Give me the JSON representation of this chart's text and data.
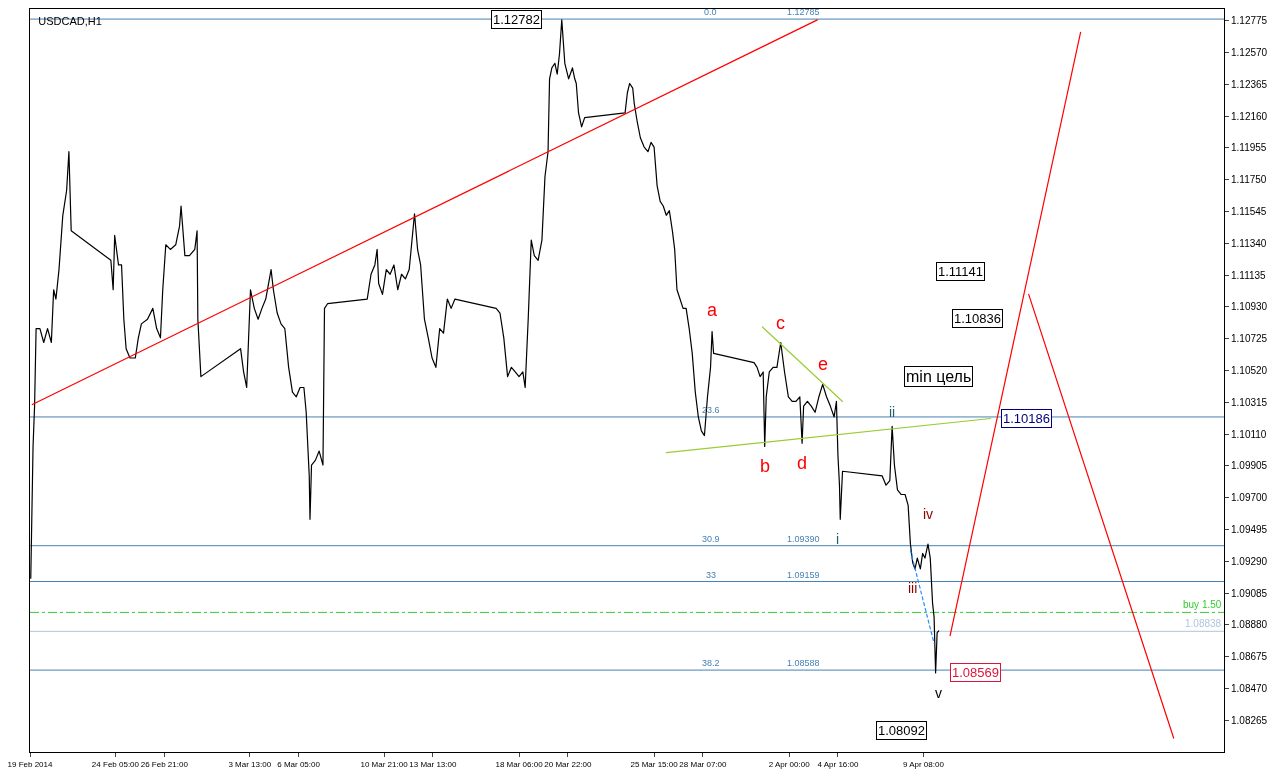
{
  "chart_data": {
    "type": "line",
    "title": "USDCAD,H1",
    "xlim": [
      "2014-02-19T13:00",
      "2014-04-25T18:00"
    ],
    "xticks": [
      {
        "value": "2014-02-19T13:00",
        "label": "19 Feb 2014"
      },
      {
        "value": "2014-02-24T05:00",
        "label": "24 Feb 05:00"
      },
      {
        "value": "2014-02-26T21:00",
        "label": "26 Feb 21:00"
      },
      {
        "value": "2014-03-03T13:00",
        "label": "3 Mar 13:00"
      },
      {
        "value": "2014-03-06T05:00",
        "label": "6 Mar 05:00"
      },
      {
        "value": "2014-03-10T21:00",
        "label": "10 Mar 21:00"
      },
      {
        "value": "2014-03-13T13:00",
        "label": "13 Mar 13:00"
      },
      {
        "value": "2014-03-18T06:00",
        "label": "18 Mar 06:00"
      },
      {
        "value": "2014-03-20T22:00",
        "label": "20 Mar 22:00"
      },
      {
        "value": "2014-03-25T15:00",
        "label": "25 Mar 15:00"
      },
      {
        "value": "2014-03-28T07:00",
        "label": "28 Mar 07:00"
      },
      {
        "value": "2014-04-02T00:00",
        "label": "2 Apr 00:00"
      },
      {
        "value": "2014-04-04T16:00",
        "label": "4 Apr 16:00"
      },
      {
        "value": "2014-04-09T08:00",
        "label": "9 Apr 08:00"
      }
    ],
    "ylim": [
      1.0806,
      1.1285
    ],
    "yticks": [
      {
        "value": 1.12775,
        "label": "1.12775"
      },
      {
        "value": 1.1257,
        "label": "1.12570"
      },
      {
        "value": 1.12365,
        "label": "1.12365"
      },
      {
        "value": 1.1216,
        "label": "1.12160"
      },
      {
        "value": 1.11955,
        "label": "1.11955"
      },
      {
        "value": 1.1175,
        "label": "1.11750"
      },
      {
        "value": 1.11545,
        "label": "1.11545"
      },
      {
        "value": 1.1134,
        "label": "1.11340"
      },
      {
        "value": 1.11135,
        "label": "1.11135"
      },
      {
        "value": 1.1093,
        "label": "1.10930"
      },
      {
        "value": 1.10725,
        "label": "1.10725"
      },
      {
        "value": 1.1052,
        "label": "1.10520"
      },
      {
        "value": 1.10315,
        "label": "1.10315"
      },
      {
        "value": 1.1011,
        "label": "1.10110"
      },
      {
        "value": 1.09905,
        "label": "1.09905"
      },
      {
        "value": 1.097,
        "label": "1.09700"
      },
      {
        "value": 1.09495,
        "label": "1.09495"
      },
      {
        "value": 1.0929,
        "label": "1.09290"
      },
      {
        "value": 1.09085,
        "label": "1.09085"
      },
      {
        "value": 1.0888,
        "label": "1.08880"
      },
      {
        "value": 1.08675,
        "label": "1.08675"
      },
      {
        "value": 1.0847,
        "label": "1.08470"
      },
      {
        "value": 1.08265,
        "label": "1.08265"
      }
    ],
    "grid": false,
    "marker": "none",
    "series": [
      {
        "color": "#000000",
        "x": [
          "2014-02-19T14:00",
          "2014-02-19T17:00",
          "2014-02-19T19:00",
          "2014-02-19T21:00",
          "2014-02-20T02:00",
          "2014-02-20T07:00",
          "2014-02-20T12:00",
          "2014-02-20T17:00",
          "2014-02-20T20:00",
          "2014-02-20T23:00",
          "2014-02-21T03:00",
          "2014-02-21T08:00",
          "2014-02-21T13:00",
          "2014-02-21T16:00",
          "2014-02-21T19:00",
          "2014-02-23T23:00",
          "2014-02-24T02:00",
          "2014-02-24T04:00",
          "2014-02-24T09:00",
          "2014-02-24T13:00",
          "2014-02-24T16:00",
          "2014-02-24T19:00",
          "2014-02-25T00:00",
          "2014-02-25T07:00",
          "2014-02-25T11:00",
          "2014-02-25T15:00",
          "2014-02-25T23:00",
          "2014-02-26T06:00",
          "2014-02-26T11:00",
          "2014-02-26T16:00",
          "2014-02-26T19:00",
          "2014-02-26T23:00",
          "2014-02-27T05:00",
          "2014-02-27T12:00",
          "2014-02-27T17:00",
          "2014-02-27T19:00",
          "2014-02-28T00:00",
          "2014-02-28T06:00",
          "2014-02-28T13:00",
          "2014-02-28T16:00",
          "2014-02-28T17:00",
          "2014-02-28T21:00",
          "2014-03-03T01:00",
          "2014-03-03T05:00",
          "2014-03-03T09:00",
          "2014-03-03T14:00",
          "2014-03-03T19:00",
          "2014-03-04T00:00",
          "2014-03-04T05:00",
          "2014-03-04T10:00",
          "2014-03-04T17:00",
          "2014-03-04T20:00",
          "2014-03-05T01:00",
          "2014-03-05T06:00",
          "2014-03-05T11:00",
          "2014-03-05T16:00",
          "2014-03-05T21:00",
          "2014-03-06T02:00",
          "2014-03-06T07:00",
          "2014-03-06T12:00",
          "2014-03-06T15:00",
          "2014-03-06T19:00",
          "2014-03-06T20:00",
          "2014-03-06T22:00",
          "2014-03-07T03:00",
          "2014-03-07T08:00",
          "2014-03-07T13:00",
          "2014-03-07T15:00",
          "2014-03-07T19:00",
          "2014-03-09T23:00",
          "2014-03-10T04:00",
          "2014-03-10T09:00",
          "2014-03-10T12:00",
          "2014-03-10T14:00",
          "2014-03-10T19:00",
          "2014-03-11T00:00",
          "2014-03-11T05:00",
          "2014-03-11T10:00",
          "2014-03-11T15:00",
          "2014-03-11T20:00",
          "2014-03-12T01:00",
          "2014-03-12T06:00",
          "2014-03-12T13:00",
          "2014-03-12T17:00",
          "2014-03-12T21:00",
          "2014-03-13T02:00",
          "2014-03-13T07:00",
          "2014-03-13T12:00",
          "2014-03-13T17:00",
          "2014-03-13T22:00",
          "2014-03-14T03:00",
          "2014-03-14T08:00",
          "2014-03-14T13:00",
          "2014-03-14T18:00",
          "2014-03-17T00:00",
          "2014-03-17T05:00",
          "2014-03-17T10:00",
          "2014-03-17T15:00",
          "2014-03-17T20:00",
          "2014-03-18T01:00",
          "2014-03-18T06:00",
          "2014-03-18T11:00",
          "2014-03-18T14:00",
          "2014-03-18T18:00",
          "2014-03-18T22:00",
          "2014-03-19T02:00",
          "2014-03-19T07:00",
          "2014-03-19T12:00",
          "2014-03-19T16:00",
          "2014-03-19T20:00",
          "2014-03-19T22:00",
          "2014-03-20T01:00",
          "2014-03-20T05:00",
          "2014-03-20T08:00",
          "2014-03-20T11:00",
          "2014-03-20T14:00",
          "2014-03-20T18:00",
          "2014-03-20T23:00",
          "2014-03-21T04:00",
          "2014-03-21T07:00",
          "2014-03-21T09:00",
          "2014-03-21T12:00",
          "2014-03-21T16:00",
          "2014-03-21T20:00",
          "2014-03-24T01:00",
          "2014-03-24T04:00",
          "2014-03-24T07:00",
          "2014-03-24T11:00",
          "2014-03-24T13:00",
          "2014-03-24T17:00",
          "2014-03-24T21:00",
          "2014-03-25T02:00",
          "2014-03-25T07:00",
          "2014-03-25T11:00",
          "2014-03-25T15:00",
          "2014-03-25T19:00",
          "2014-03-25T23:00",
          "2014-03-26T03:00",
          "2014-03-26T07:00",
          "2014-03-26T11:00",
          "2014-03-26T15:00",
          "2014-03-26T18:00",
          "2014-03-26T21:00",
          "2014-03-27T01:00",
          "2014-03-27T05:00",
          "2014-03-27T09:00",
          "2014-03-27T13:00",
          "2014-03-27T17:00",
          "2014-03-27T21:00",
          "2014-03-28T01:00",
          "2014-03-28T05:00",
          "2014-03-28T09:00",
          "2014-03-28T13:00",
          "2014-03-28T17:00",
          "2014-03-28T19:00",
          "2014-03-28T21:00",
          "2014-03-31T02:00",
          "2014-03-31T06:00",
          "2014-03-31T10:00",
          "2014-03-31T14:00",
          "2014-03-31T16:00",
          "2014-03-31T18:00",
          "2014-03-31T22:00",
          "2014-04-01T03:00",
          "2014-04-01T08:00",
          "2014-04-01T13:00",
          "2014-04-01T18:00",
          "2014-04-01T23:00",
          "2014-04-02T04:00",
          "2014-04-02T09:00",
          "2014-04-02T14:00",
          "2014-04-02T17:00",
          "2014-04-02T19:00",
          "2014-04-03T00:00",
          "2014-04-03T05:00",
          "2014-04-03T10:00",
          "2014-04-03T15:00",
          "2014-04-03T20:00",
          "2014-04-04T01:00",
          "2014-04-04T06:00",
          "2014-04-04T11:00",
          "2014-04-04T14:00",
          "2014-04-04T16:00",
          "2014-04-04T18:00",
          "2014-04-04T19:00",
          "2014-04-04T22:00",
          "2014-04-07T02:00",
          "2014-04-07T07:00",
          "2014-04-07T12:00",
          "2014-04-07T15:00",
          "2014-04-07T18:00",
          "2014-04-07T22:00",
          "2014-04-08T03:00",
          "2014-04-08T08:00",
          "2014-04-08T12:00",
          "2014-04-08T15:00",
          "2014-04-08T18:00",
          "2014-04-08T21:00",
          "2014-04-09T00:00",
          "2014-04-09T04:00",
          "2014-04-09T07:00",
          "2014-04-09T10:00",
          "2014-04-09T14:00",
          "2014-04-09T17:00",
          "2014-04-09T20:00",
          "2014-04-09T22:00",
          "2014-04-10T00:00",
          "2014-04-10T02:00",
          "2014-04-10T04:00"
        ],
        "values": [
          1.0918,
          1.1003,
          1.1029,
          1.1079,
          1.1079,
          1.107,
          1.1079,
          1.107,
          1.1104,
          1.1098,
          1.1117,
          1.1152,
          1.1168,
          1.1193,
          1.1142,
          1.1123,
          1.1104,
          1.1139,
          1.112,
          1.112,
          1.1085,
          1.1066,
          1.106,
          1.106,
          1.1073,
          1.1082,
          1.1085,
          1.1092,
          1.1079,
          1.1073,
          1.1104,
          1.1133,
          1.113,
          1.1133,
          1.1145,
          1.1158,
          1.1126,
          1.1126,
          1.113,
          1.1142,
          1.1085,
          1.1048,
          1.1066,
          1.1051,
          1.1041,
          1.1104,
          1.1092,
          1.1085,
          1.1092,
          1.1098,
          1.1117,
          1.1104,
          1.1089,
          1.1082,
          1.1079,
          1.1054,
          1.1038,
          1.1035,
          1.1041,
          1.1041,
          1.1025,
          1.0984,
          1.0956,
          1.0991,
          1.0994,
          1.1,
          1.0991,
          1.1092,
          1.1095,
          1.1098,
          1.1114,
          1.112,
          1.113,
          1.1108,
          1.1101,
          1.1117,
          1.1114,
          1.112,
          1.1104,
          1.1114,
          1.1111,
          1.1117,
          1.1153,
          1.113,
          1.112,
          1.1085,
          1.1073,
          1.106,
          1.1054,
          1.1079,
          1.1076,
          1.1098,
          1.1092,
          1.1098,
          1.1092,
          1.1089,
          1.1073,
          1.1048,
          1.1054,
          1.1051,
          1.1048,
          1.1051,
          1.1041,
          1.1085,
          1.1136,
          1.1126,
          1.1123,
          1.1136,
          1.1177,
          1.1193,
          1.124,
          1.1247,
          1.125,
          1.1243,
          1.1256,
          1.1278,
          1.125,
          1.124,
          1.1247,
          1.124,
          1.1237,
          1.1218,
          1.1209,
          1.1215,
          1.1218,
          1.1231,
          1.1237,
          1.1234,
          1.1224,
          1.1212,
          1.1202,
          1.1196,
          1.1193,
          1.1199,
          1.1196,
          1.1171,
          1.1161,
          1.1158,
          1.1152,
          1.1155,
          1.1142,
          1.113,
          1.1104,
          1.1098,
          1.1092,
          1.1092,
          1.1079,
          1.1063,
          1.1038,
          1.1022,
          1.1013,
          1.101,
          1.1035,
          1.1054,
          1.1077,
          1.1063,
          1.1057,
          1.1054,
          1.1048,
          1.1051,
          1.1003,
          1.1035,
          1.1051,
          1.1054,
          1.1054,
          1.107,
          1.1051,
          1.1035,
          1.1032,
          1.1032,
          1.1035,
          1.1005,
          1.1029,
          1.1032,
          1.1029,
          1.1025,
          1.1035,
          1.1043,
          1.1035,
          1.1029,
          1.1022,
          1.1032,
          1.0997,
          1.0978,
          1.0956,
          1.0987,
          1.0984,
          1.0978,
          1.0981,
          1.1016,
          1.0991,
          1.0975,
          1.0972,
          1.0972,
          1.0965,
          1.094,
          1.0928,
          1.0924,
          1.0931,
          1.0924,
          1.0934,
          1.0931,
          1.094,
          1.0931,
          1.0902,
          1.0893,
          1.0857,
          1.0883,
          1.0884
        ]
      },
      {
        "color": "#ff0000",
        "x": [
          "2014-02-19T16:00",
          "2014-04-03T13:00"
        ],
        "values": [
          1.103,
          1.1278
        ]
      },
      {
        "color": "#9acd32",
        "x": [
          "2014-03-26T07:00",
          "2014-04-13T00:00"
        ],
        "values": [
          1.0999,
          1.1021
        ]
      },
      {
        "color": "#9acd32",
        "x": [
          "2014-03-31T13:00",
          "2014-04-04T22:00"
        ],
        "values": [
          1.108,
          1.1032
        ]
      },
      {
        "color": "#1e90ff",
        "line_style": "dotted",
        "x": [
          "2014-04-08T15:00",
          "2014-04-09T22:00"
        ],
        "values": [
          1.0936,
          1.0876
        ]
      },
      {
        "color": "#ff0000",
        "x": [
          "2014-04-10T19:00",
          "2014-04-17T22:00"
        ],
        "values": [
          1.0881,
          1.127
        ]
      },
      {
        "color": "#ff0000",
        "x": [
          "2014-04-15T02:00",
          "2014-04-23T00:00"
        ],
        "values": [
          1.1101,
          1.0815
        ]
      }
    ],
    "ref_lines": [
      {
        "axis": "y",
        "value": 1.12785,
        "color": "#4682b4"
      },
      {
        "axis": "y",
        "value": 1.1022,
        "color": "#4682b4"
      },
      {
        "axis": "y",
        "value": 1.0939,
        "color": "#4682b4"
      },
      {
        "axis": "y",
        "value": 1.09159,
        "color": "#4682b4"
      },
      {
        "axis": "y",
        "value": 1.08588,
        "color": "#4682b4"
      },
      {
        "axis": "y",
        "value": 1.0896,
        "label": "buy 1.50",
        "color": "#32cd32",
        "line_style": "dashdot"
      },
      {
        "axis": "y",
        "value": 1.08838,
        "label": "1.08838",
        "color": "#b0c4de"
      }
    ],
    "annotations": [
      {
        "text": "0.0",
        "x": "2014-03-28T17:00",
        "y": 1.12785
      },
      {
        "text": "1.12785",
        "x": "2014-04-02T19:00",
        "y": 1.12785
      },
      {
        "text": "23.6",
        "x": "2014-03-28T17:00",
        "y": 1.1022
      },
      {
        "text": "30.9",
        "x": "2014-03-28T17:00",
        "y": 1.0939
      },
      {
        "text": "1.09390",
        "x": "2014-04-02T19:00",
        "y": 1.0939
      },
      {
        "text": "33",
        "x": "2014-03-28T17:00",
        "y": 1.09159
      },
      {
        "text": "1.09159",
        "x": "2014-04-02T19:00",
        "y": 1.09159
      },
      {
        "text": "38.2",
        "x": "2014-03-28T17:00",
        "y": 1.08588
      },
      {
        "text": "1.08588",
        "x": "2014-04-02T19:00",
        "y": 1.08588
      },
      {
        "text": "1.12782",
        "x": "2014-03-20T14:00",
        "y": 1.1278
      },
      {
        "text": "1.10186",
        "x": "2014-04-13T00:00",
        "y": 1.1021
      },
      {
        "text": "1.08569",
        "x": "2014-04-10T00:00",
        "y": 1.0857
      },
      {
        "text": "a",
        "x": "2014-03-28T19:00",
        "y": 1.1077
      },
      {
        "text": "b",
        "x": "2014-03-31T16:00",
        "y": 1.1003
      },
      {
        "text": "c",
        "x": "2014-04-01T13:00",
        "y": 1.107
      },
      {
        "text": "d",
        "x": "2014-04-02T17:00",
        "y": 1.1005
      },
      {
        "text": "e",
        "x": "2014-04-03T20:00",
        "y": 1.1043
      },
      {
        "text": "i",
        "x": "2014-04-04T19:00",
        "y": 1.0956
      },
      {
        "text": "ii",
        "x": "2014-04-07T15:00",
        "y": 1.1016
      },
      {
        "text": "iii",
        "x": "2014-04-08T18:00",
        "y": 1.0928
      },
      {
        "text": "iv",
        "x": "2014-04-09T14:00",
        "y": 1.094
      },
      {
        "text": "v",
        "x": "2014-04-10T00:00",
        "y": 1.0857
      },
      "1.11141",
      "1.10836",
      "min цель",
      "1.08092"
    ]
  }
}
